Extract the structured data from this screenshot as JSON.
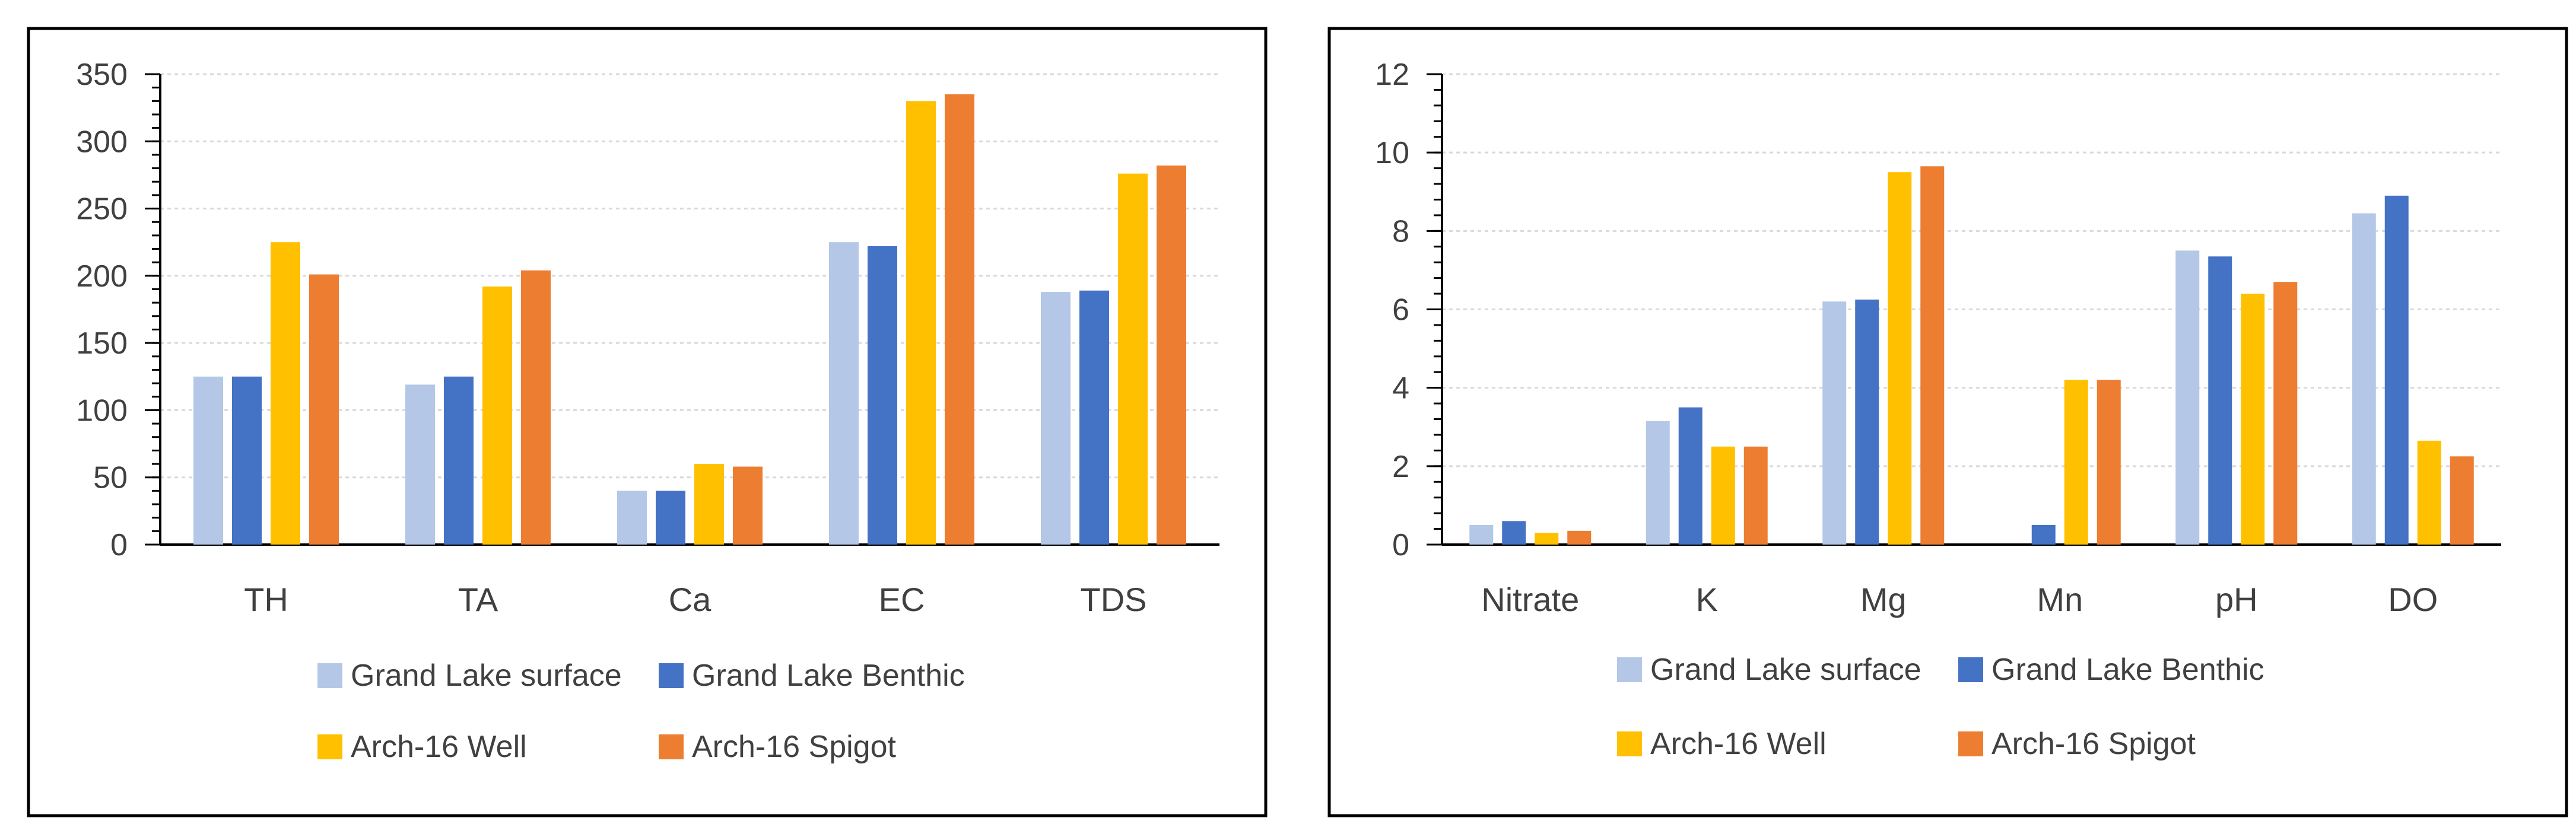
{
  "colors": {
    "grand_lake_surface": "#B4C7E7",
    "grand_lake_benthic": "#4472C4",
    "arch16_well": "#FFC000",
    "arch16_spigot": "#ED7D31",
    "frame": "#000000",
    "gridline": "#D9D9D9",
    "axis_text": "#404040"
  },
  "chart_data": [
    {
      "type": "bar",
      "title": "",
      "xlabel": "",
      "ylabel": "",
      "ylim": [
        0,
        350
      ],
      "yticks": [
        "0",
        "50",
        "100",
        "150",
        "200",
        "250",
        "300",
        "350"
      ],
      "grid": true,
      "legend_position": "bottom",
      "categories": [
        "TH",
        "TA",
        "Ca",
        "EC",
        "TDS"
      ],
      "series": [
        {
          "name": "Grand Lake surface",
          "color_key": "grand_lake_surface",
          "values": [
            125,
            119,
            40,
            225,
            188
          ]
        },
        {
          "name": "Grand Lake Benthic",
          "color_key": "grand_lake_benthic",
          "values": [
            125,
            125,
            40,
            222,
            189
          ]
        },
        {
          "name": "Arch-16 Well",
          "color_key": "arch16_well",
          "values": [
            225,
            192,
            60,
            330,
            276
          ]
        },
        {
          "name": "Arch-16 Spigot",
          "color_key": "arch16_spigot",
          "values": [
            201,
            204,
            58,
            335,
            282
          ]
        }
      ]
    },
    {
      "type": "bar",
      "title": "",
      "xlabel": "",
      "ylabel": "",
      "ylim": [
        0,
        12
      ],
      "yticks": [
        "0",
        "2",
        "4",
        "6",
        "8",
        "10",
        "12"
      ],
      "grid": true,
      "legend_position": "bottom",
      "categories": [
        "Nitrate",
        "K",
        "Mg",
        "Mn",
        "pH",
        "DO"
      ],
      "series": [
        {
          "name": "Grand Lake surface",
          "color_key": "grand_lake_surface",
          "values": [
            0.5,
            3.15,
            6.2,
            0,
            7.5,
            8.45
          ]
        },
        {
          "name": "Grand Lake Benthic",
          "color_key": "grand_lake_benthic",
          "values": [
            0.6,
            3.5,
            6.25,
            0.5,
            7.35,
            8.9
          ]
        },
        {
          "name": "Arch-16 Well",
          "color_key": "arch16_well",
          "values": [
            0.3,
            2.5,
            9.5,
            4.2,
            6.4,
            2.65
          ]
        },
        {
          "name": "Arch-16 Spigot",
          "color_key": "arch16_spigot",
          "values": [
            0.35,
            2.5,
            9.65,
            4.2,
            6.7,
            2.25
          ]
        }
      ]
    }
  ]
}
